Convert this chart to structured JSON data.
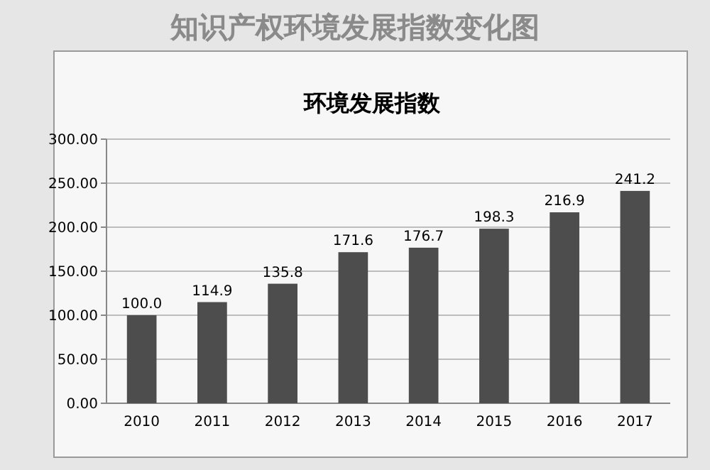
{
  "chart_data": {
    "type": "bar",
    "title": "知识产权环境发展指数变化图",
    "subtitle": "环境发展指数",
    "categories": [
      "2010",
      "2011",
      "2012",
      "2013",
      "2014",
      "2015",
      "2016",
      "2017"
    ],
    "values": [
      100.0,
      114.9,
      135.8,
      171.6,
      176.7,
      198.3,
      216.9,
      241.2
    ],
    "value_labels": [
      "100.0",
      "114.9",
      "135.8",
      "171.6",
      "176.7",
      "198.3",
      "216.9",
      "241.2"
    ],
    "color": "#4d4d4d",
    "ylim": [
      0,
      300
    ],
    "yticks": [
      {
        "value": 0,
        "label": "0.00"
      },
      {
        "value": 50,
        "label": "50.00"
      },
      {
        "value": 100,
        "label": "100.00"
      },
      {
        "value": 150,
        "label": "150.00"
      },
      {
        "value": 200,
        "label": "200.00"
      },
      {
        "value": 250,
        "label": "250.00"
      },
      {
        "value": 300,
        "label": "300.00"
      }
    ],
    "grid": "y"
  }
}
